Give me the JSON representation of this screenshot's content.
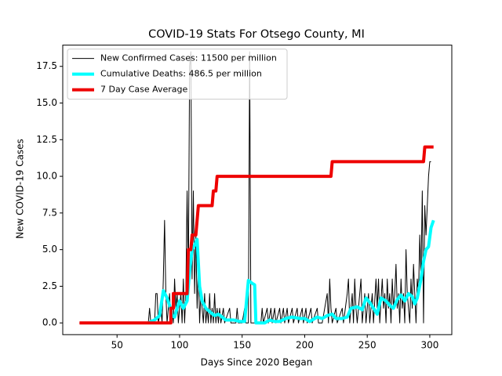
{
  "chart_data": {
    "type": "line",
    "title": "COVID-19 Stats For Otsego County, MI",
    "x_label": "Days Since 2020 Began",
    "y_label": "New COVID-19 Cases",
    "xlim": [
      6.6,
      317.6
    ],
    "ylim": [
      -0.8,
      18.95
    ],
    "xticks": [
      50,
      100,
      150,
      200,
      250,
      300
    ],
    "yticks": [
      {
        "value": 0,
        "label": "0.0"
      },
      2.5,
      {
        "value": 5,
        "label": "5.0"
      },
      7.5,
      {
        "value": 10,
        "label": "10.0"
      },
      12.5,
      {
        "value": 15,
        "label": "15.0"
      },
      17.5
    ],
    "grid": false,
    "legend": "upper left",
    "series": [
      {
        "name": "New Confirmed Cases: 11500 per million",
        "color": "#000000",
        "linewidth": 1,
        "x": [
          20,
          75,
          76,
          77,
          80,
          81,
          82,
          83,
          85,
          86,
          87,
          88,
          89,
          90,
          91,
          92,
          93,
          94,
          95,
          96,
          97,
          98,
          99,
          100,
          101,
          102,
          103,
          104,
          105,
          106,
          107,
          108,
          109,
          110,
          111,
          112,
          113,
          114,
          115,
          116,
          117,
          118,
          119,
          120,
          121,
          122,
          123,
          124,
          125,
          126,
          127,
          128,
          129,
          130,
          131,
          132,
          133,
          135,
          136,
          140,
          141,
          145,
          146,
          147,
          150,
          152,
          153,
          155,
          156,
          157,
          160,
          165,
          166,
          167,
          170,
          171,
          173,
          174,
          176,
          177,
          180,
          181,
          183,
          184,
          186,
          187,
          190,
          191,
          194,
          195,
          198,
          199,
          201,
          202,
          205,
          206,
          210,
          211,
          214,
          218,
          219,
          220,
          221,
          222,
          225,
          226,
          230,
          231,
          234,
          235,
          236,
          238,
          239,
          240,
          241,
          242,
          244,
          245,
          246,
          248,
          249,
          250,
          251,
          252,
          254,
          255,
          257,
          258,
          259,
          260,
          262,
          263,
          264,
          265,
          266,
          267,
          268,
          269,
          270,
          271,
          272,
          273,
          274,
          275,
          276,
          277,
          278,
          279,
          280,
          281,
          282,
          283,
          284,
          285,
          286,
          287,
          288,
          289,
          290,
          291,
          292,
          293,
          294,
          295,
          296,
          297,
          298,
          299,
          300,
          301
        ],
        "values": [
          0,
          0,
          1,
          0,
          0,
          2,
          2,
          0,
          1,
          0,
          3,
          7,
          2,
          0,
          1,
          2,
          0,
          1,
          0,
          3,
          1,
          2,
          0,
          1,
          2,
          0,
          3,
          0,
          2,
          9,
          3,
          17.5,
          18.5,
          3,
          9,
          2,
          6,
          1,
          4,
          0,
          2,
          1,
          0,
          2,
          0,
          1,
          0,
          2,
          0,
          1,
          0,
          2,
          0,
          1,
          0,
          1,
          0,
          1,
          0,
          1,
          0,
          0,
          1,
          0,
          0,
          1,
          0,
          0,
          18.5,
          0,
          0,
          0,
          1,
          0,
          1,
          0,
          1,
          0,
          1,
          0,
          1,
          0,
          1,
          0,
          1,
          0,
          1,
          0,
          1,
          0,
          1,
          0,
          1,
          0,
          1,
          0,
          1,
          0,
          0,
          2,
          0,
          3,
          1,
          0,
          1,
          0,
          1,
          0,
          2,
          3,
          0,
          2,
          0,
          3,
          1,
          0,
          2,
          3,
          0,
          2,
          0,
          1,
          2,
          0,
          2,
          0,
          3,
          1,
          3,
          0,
          3,
          1,
          2,
          0,
          3,
          1,
          2,
          0,
          3,
          1,
          2,
          4,
          1,
          2,
          0,
          3,
          1,
          2,
          0,
          5,
          2,
          1,
          0,
          3,
          1,
          4,
          2,
          0,
          3,
          2,
          6,
          3,
          9,
          0,
          8,
          6,
          8,
          10,
          11,
          11
        ]
      },
      {
        "name": "Cumulative Deaths: 486.5 per million",
        "color": "#00ffff",
        "linewidth": 4,
        "x": [
          75,
          80,
          84,
          87,
          90,
          92,
          94,
          96,
          98,
          100,
          103,
          106,
          108,
          110,
          112,
          114,
          116,
          118,
          121,
          125,
          128,
          131,
          134,
          137,
          143,
          148,
          152,
          155,
          158,
          160,
          161,
          168,
          172,
          176,
          180,
          185,
          190,
          196,
          200,
          204,
          210,
          214,
          218,
          222,
          225,
          230,
          234,
          237,
          242,
          246,
          249,
          252,
          255,
          258,
          261,
          265,
          268,
          271,
          274,
          277,
          280,
          283,
          286,
          288,
          290,
          293,
          295,
          297,
          299,
          301,
          303
        ],
        "values": [
          0,
          0.2,
          0.5,
          2.2,
          1.7,
          1.2,
          0.5,
          0.4,
          1.0,
          1.5,
          1.0,
          1.5,
          3.5,
          5.0,
          5.3,
          5.7,
          2.5,
          1.5,
          1.0,
          0.7,
          0.5,
          0.6,
          0.4,
          0.2,
          0.2,
          0.1,
          0.1,
          2.9,
          2.7,
          2.6,
          0,
          0,
          0.2,
          0.1,
          0.1,
          0.3,
          0.4,
          0.3,
          0.3,
          0.1,
          0.4,
          0.3,
          0.5,
          0.6,
          0.3,
          0.3,
          0.4,
          1,
          1.1,
          0.9,
          1.7,
          1.4,
          1.0,
          0.6,
          1.7,
          1.5,
          1.2,
          1.0,
          1.6,
          1.9,
          1.5,
          2.0,
          1.8,
          1.3,
          1.7,
          3.0,
          4.2,
          5.0,
          5.2,
          6.5,
          7.0
        ]
      },
      {
        "name": "7 Day Case Average",
        "color": "#ee0000",
        "linewidth": 4,
        "x": [
          20,
          93,
          93,
          95,
          95,
          106,
          107,
          109,
          110,
          113,
          114,
          115,
          126,
          127,
          129,
          130,
          221,
          222,
          295,
          296,
          303
        ],
        "values": [
          0,
          0,
          1,
          1,
          2,
          2,
          5,
          5,
          6,
          6,
          7,
          8,
          8,
          9,
          9,
          10,
          10,
          11,
          11,
          12,
          12
        ]
      }
    ]
  }
}
